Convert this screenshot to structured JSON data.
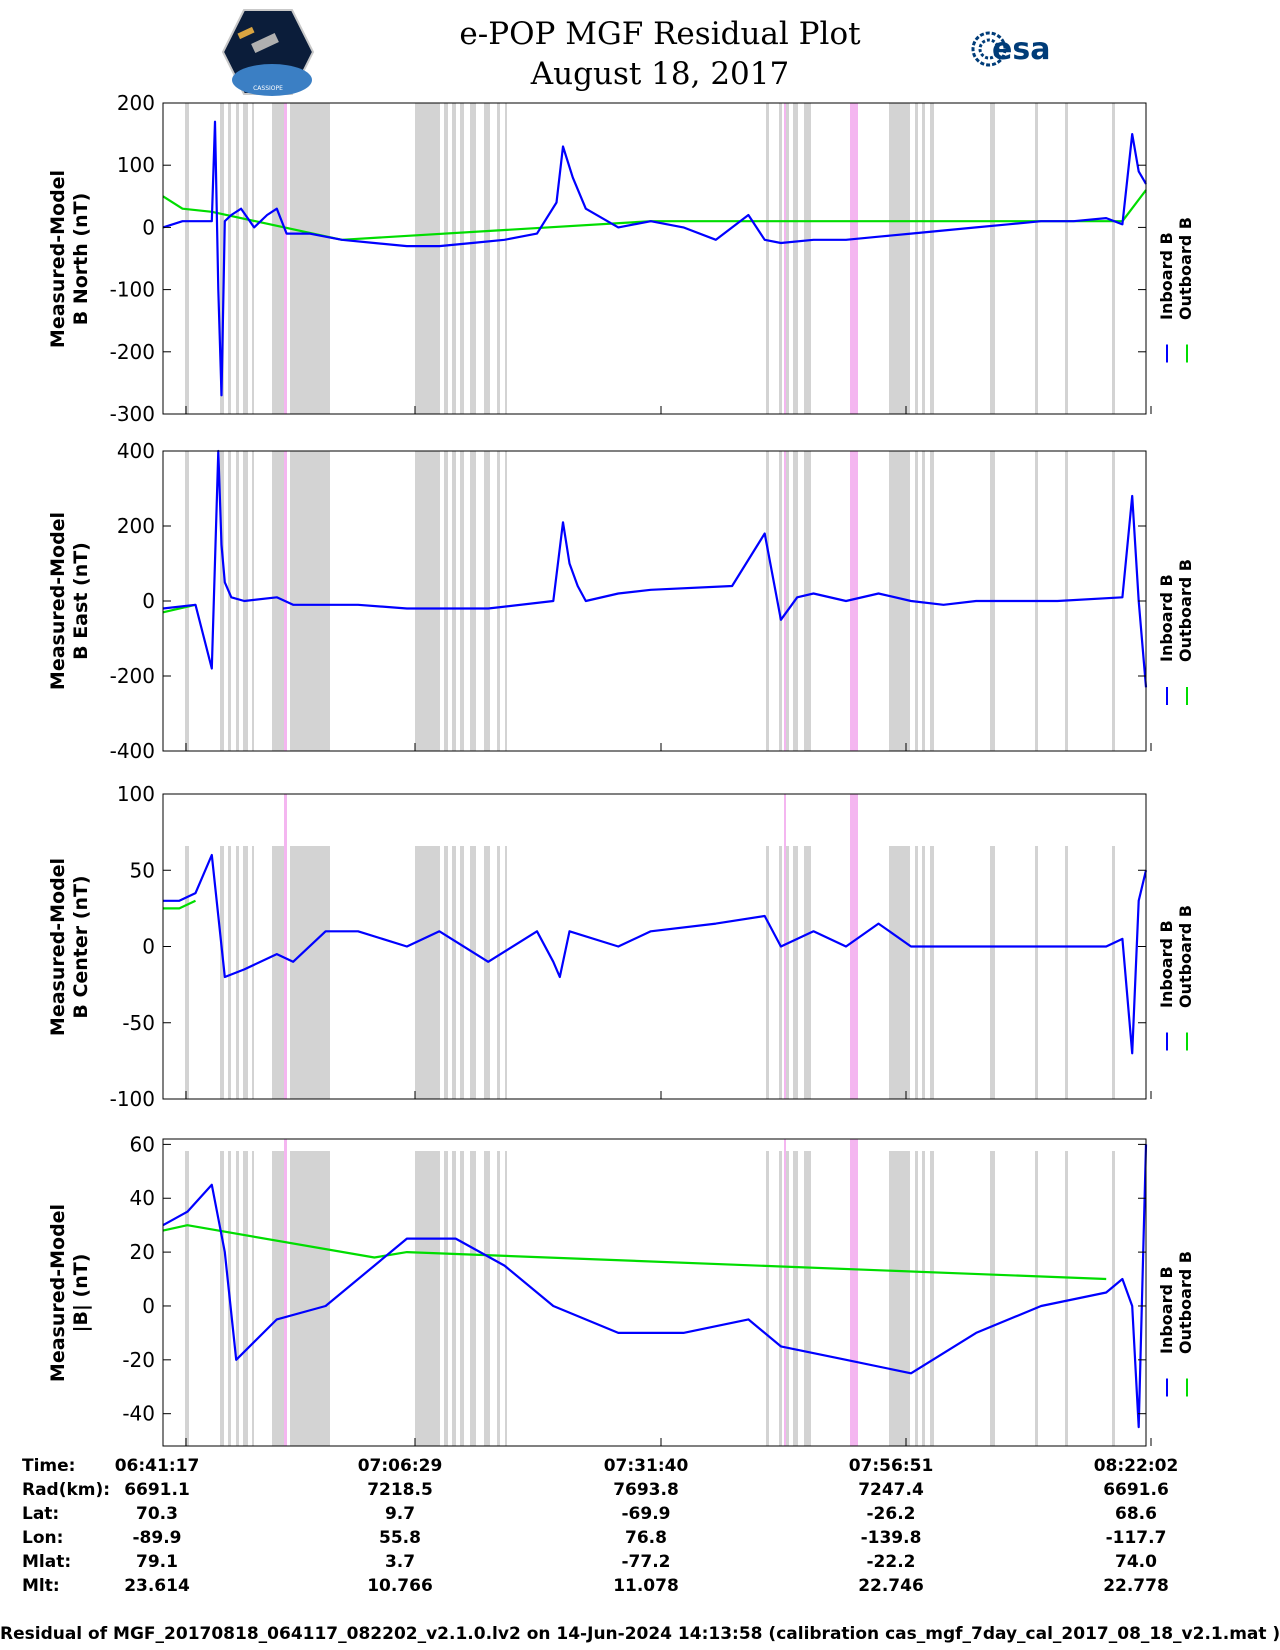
{
  "title": {
    "line1": "e-POP MGF Residual Plot",
    "line2": "August 18, 2017"
  },
  "logos": {
    "left_name": "cassiope-mission-logo",
    "left_text": "CASSIOPE",
    "right_name": "esa-logo",
    "right_text": "esa",
    "brand_color": "#003c78"
  },
  "legend": {
    "inboard": "Inboard B",
    "outboard": "Outboard B",
    "inboard_color": "#0000ff",
    "outboard_color": "#00dd00"
  },
  "colors": {
    "gray_band": "#d3d3d3",
    "pink_band": "#f4b6f0"
  },
  "chart_data": [
    {
      "type": "line",
      "title": "e-POP MGF Residual Plot",
      "ylabel_line1": "Measured-Model",
      "ylabel_line2": "B North (nT)",
      "ylim": [
        -300,
        200
      ],
      "yticks": [
        200,
        100,
        0,
        -100,
        -200,
        -300
      ],
      "xlim": [
        0,
        6045
      ],
      "series": [
        {
          "name": "Inboard B",
          "x": [
            0,
            120,
            300,
            320,
            340,
            360,
            380,
            420,
            480,
            560,
            640,
            700,
            760,
            900,
            1100,
            1300,
            1500,
            1700,
            1900,
            2100,
            2300,
            2420,
            2460,
            2520,
            2600,
            2800,
            3000,
            3200,
            3400,
            3600,
            3700,
            3800,
            4000,
            4200,
            4400,
            4600,
            4800,
            5000,
            5200,
            5400,
            5600,
            5800,
            5900,
            5960,
            6000,
            6045
          ],
          "values": [
            0,
            10,
            10,
            170,
            -100,
            -270,
            10,
            20,
            30,
            0,
            20,
            30,
            -10,
            -10,
            -20,
            -25,
            -30,
            -30,
            -25,
            -20,
            -10,
            40,
            130,
            80,
            30,
            0,
            10,
            0,
            -20,
            20,
            -20,
            -25,
            -20,
            -20,
            -15,
            -10,
            -5,
            0,
            5,
            10,
            10,
            15,
            5,
            150,
            90,
            70
          ]
        },
        {
          "name": "Outboard B",
          "x": [
            0,
            120,
            300,
            1100,
            3000,
            5900,
            6045
          ],
          "values": [
            50,
            30,
            25,
            -20,
            10,
            10,
            60
          ]
        }
      ]
    },
    {
      "type": "line",
      "ylabel_line1": "Measured-Model",
      "ylabel_line2": "B East (nT)",
      "ylim": [
        -400,
        400
      ],
      "yticks": [
        400,
        200,
        0,
        -200,
        -400
      ],
      "xlim": [
        0,
        6045
      ],
      "series": [
        {
          "name": "Inboard B",
          "x": [
            0,
            200,
            300,
            340,
            360,
            380,
            420,
            500,
            700,
            800,
            1000,
            1200,
            1500,
            2000,
            2400,
            2460,
            2500,
            2550,
            2600,
            2800,
            3000,
            3500,
            3700,
            3800,
            3900,
            4000,
            4200,
            4400,
            4600,
            4800,
            5000,
            5500,
            5900,
            5960,
            6000,
            6045
          ],
          "values": [
            -20,
            -10,
            -180,
            400,
            150,
            50,
            10,
            0,
            10,
            -10,
            -10,
            -10,
            -20,
            -20,
            0,
            210,
            100,
            40,
            0,
            20,
            30,
            40,
            180,
            -50,
            10,
            20,
            0,
            20,
            0,
            -10,
            0,
            0,
            10,
            280,
            0,
            -230
          ]
        },
        {
          "name": "Outboard B",
          "x": [
            0,
            200
          ],
          "values": [
            -30,
            -10
          ]
        }
      ]
    },
    {
      "type": "line",
      "ylabel_line1": "Measured-Model",
      "ylabel_line2": "B Center (nT)",
      "ylim": [
        -100,
        100
      ],
      "yticks": [
        100,
        50,
        0,
        -50,
        -100
      ],
      "xlim": [
        0,
        6045
      ],
      "series": [
        {
          "name": "Inboard B",
          "x": [
            0,
            100,
            200,
            300,
            340,
            380,
            500,
            700,
            800,
            1000,
            1200,
            1500,
            1700,
            2000,
            2300,
            2400,
            2440,
            2500,
            2800,
            3000,
            3400,
            3700,
            3800,
            4000,
            4200,
            4400,
            4600,
            4800,
            5000,
            5400,
            5800,
            5900,
            5960,
            6000,
            6045
          ],
          "values": [
            30,
            30,
            35,
            60,
            20,
            -20,
            -15,
            -5,
            -10,
            10,
            10,
            0,
            10,
            -10,
            10,
            -10,
            -20,
            10,
            0,
            10,
            15,
            20,
            0,
            10,
            0,
            15,
            0,
            0,
            0,
            0,
            0,
            5,
            -70,
            30,
            50
          ]
        },
        {
          "name": "Outboard B",
          "x": [
            0,
            100,
            200
          ],
          "values": [
            25,
            25,
            30
          ]
        }
      ]
    },
    {
      "type": "line",
      "ylabel_line1": "Measured-Model",
      "ylabel_line2": "|B| (nT)",
      "ylim": [
        -52,
        62
      ],
      "yticks": [
        60,
        40,
        20,
        0,
        -20,
        -40
      ],
      "xlim": [
        0,
        6045
      ],
      "series": [
        {
          "name": "Inboard B",
          "x": [
            0,
            150,
            300,
            380,
            450,
            700,
            1000,
            1300,
            1500,
            1800,
            2100,
            2400,
            2800,
            3200,
            3600,
            3800,
            4200,
            4600,
            5000,
            5400,
            5800,
            5900,
            5960,
            6000,
            6045
          ],
          "values": [
            30,
            35,
            45,
            20,
            -20,
            -5,
            0,
            15,
            25,
            25,
            15,
            0,
            -10,
            -10,
            -5,
            -15,
            -20,
            -25,
            -10,
            0,
            5,
            10,
            0,
            -45,
            60
          ]
        },
        {
          "name": "Outboard B",
          "x": [
            0,
            150,
            1300,
            1500,
            5800
          ],
          "values": [
            28,
            30,
            18,
            20,
            10
          ]
        }
      ]
    }
  ],
  "info": {
    "labels": [
      "Time:",
      "Rad(km):",
      "Lat:",
      "Lon:",
      "Mlat:",
      "Mlt:"
    ],
    "columns": [
      [
        "06:41:17",
        "6691.1",
        "70.3",
        "-89.9",
        "79.1",
        "23.614"
      ],
      [
        "07:06:29",
        "7218.5",
        "9.7",
        "55.8",
        "3.7",
        "10.766"
      ],
      [
        "07:31:40",
        "7693.8",
        "-69.9",
        "76.8",
        "-77.2",
        "11.078"
      ],
      [
        "07:56:51",
        "7247.4",
        "-26.2",
        "-139.8",
        "-22.2",
        "22.746"
      ],
      [
        "08:22:02",
        "6691.6",
        "68.6",
        "-117.7",
        "74.0",
        "22.778"
      ]
    ]
  },
  "footer": "Residual of MGF_20170818_064117_082202_v2.1.0.lv2 on 14-Jun-2024 14:13:58 (calibration cas_mgf_7day_cal_2017_08_18_v2.1.mat )"
}
